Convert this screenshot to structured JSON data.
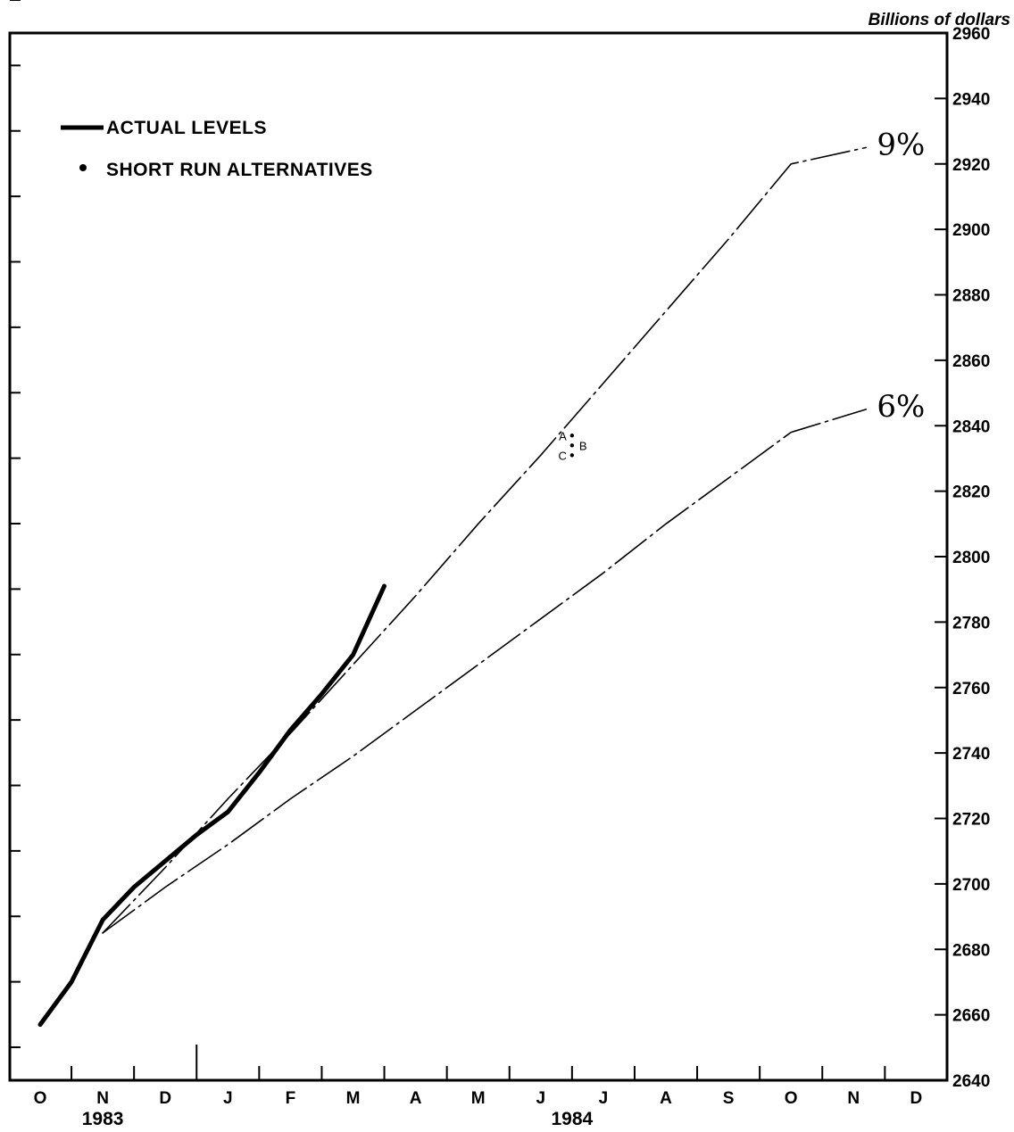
{
  "chart_data": {
    "type": "line",
    "ylabel": "Billions of dollars",
    "ylim": [
      2640,
      2960
    ],
    "yticks": [
      2640,
      2660,
      2680,
      2700,
      2720,
      2740,
      2760,
      2780,
      2800,
      2820,
      2840,
      2860,
      2880,
      2900,
      2920,
      2940,
      2960
    ],
    "x_months": [
      "O",
      "N",
      "D",
      "J",
      "F",
      "M",
      "A",
      "M",
      "J",
      "J",
      "A",
      "S",
      "O",
      "N",
      "D"
    ],
    "years": [
      {
        "label": "1983",
        "month_index": 1
      },
      {
        "label": "1984",
        "month_index": 8.5
      }
    ],
    "legend": {
      "actual": "ACTUAL LEVELS",
      "alternatives": "SHORT RUN ALTERNATIVES",
      "placement": "top-left"
    },
    "series": [
      {
        "name": "ACTUAL LEVELS",
        "style": "thick-solid",
        "points": [
          [
            0,
            2657
          ],
          [
            0.5,
            2670
          ],
          [
            1,
            2689
          ],
          [
            1.5,
            2699
          ],
          [
            2,
            2707
          ],
          [
            2.5,
            2715
          ],
          [
            3,
            2722
          ],
          [
            3.5,
            2734
          ],
          [
            4,
            2747
          ],
          [
            4.5,
            2758
          ],
          [
            5,
            2770
          ],
          [
            5.5,
            2791
          ]
        ]
      },
      {
        "label": "9%",
        "style": "thin-dashed",
        "points": [
          [
            1,
            2685
          ],
          [
            2,
            2705
          ],
          [
            3,
            2726
          ],
          [
            4,
            2746
          ],
          [
            5,
            2767
          ],
          [
            6,
            2788
          ],
          [
            7,
            2810
          ],
          [
            8,
            2831
          ],
          [
            9,
            2853
          ],
          [
            10,
            2875
          ],
          [
            11,
            2897
          ],
          [
            12,
            2920
          ],
          [
            13.2,
            2925
          ]
        ]
      },
      {
        "label": "6%",
        "style": "thin-dashed",
        "points": [
          [
            1,
            2685
          ],
          [
            2,
            2699
          ],
          [
            3,
            2712
          ],
          [
            4,
            2726
          ],
          [
            5,
            2739
          ],
          [
            6,
            2753
          ],
          [
            7,
            2767
          ],
          [
            8,
            2781
          ],
          [
            9,
            2795
          ],
          [
            10,
            2810
          ],
          [
            11,
            2824
          ],
          [
            12,
            2838
          ],
          [
            13.2,
            2845
          ]
        ]
      }
    ],
    "short_run_alternatives": [
      {
        "label": "A",
        "x": 8.5,
        "y": 2837
      },
      {
        "label": "B",
        "x": 8.5,
        "y": 2834
      },
      {
        "label": "C",
        "x": 8.5,
        "y": 2831
      }
    ],
    "grid": false
  }
}
